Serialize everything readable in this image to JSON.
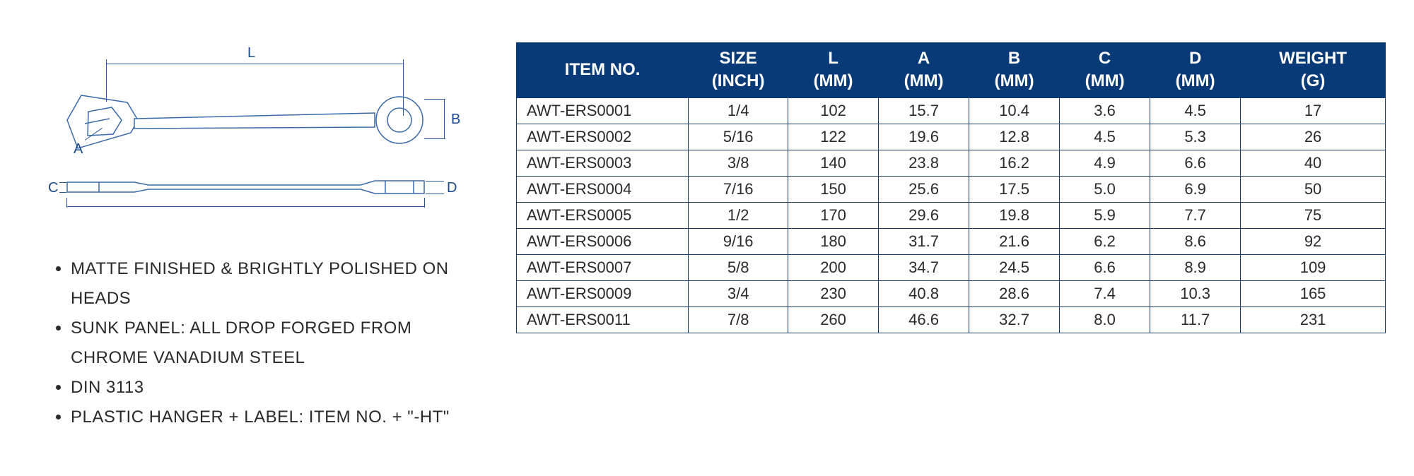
{
  "diagram": {
    "labels": {
      "L": "L",
      "A": "A",
      "B": "B",
      "C": "C",
      "D": "D"
    },
    "line_color": "#2a5a9a",
    "label_color": "#1a4a8a"
  },
  "features": [
    "MATTE FINISHED & BRIGHTLY POLISHED ON HEADS",
    "SUNK PANEL: ALL DROP FORGED FROM CHROME VANADIUM STEEL",
    "DIN 3113",
    "PLASTIC HANGER + LABEL: ITEM NO. + \"-HT\""
  ],
  "table": {
    "header_bg": "#083a78",
    "header_fg": "#ffffff",
    "border_color": "#1a3a6a",
    "columns": [
      "ITEM NO.",
      "SIZE\n(INCH)",
      "L\n(MM)",
      "A\n(MM)",
      "B\n(MM)",
      "C\n(MM)",
      "D\n(MM)",
      "WEIGHT\n(G)"
    ],
    "rows": [
      [
        "AWT-ERS0001",
        "1/4",
        "102",
        "15.7",
        "10.4",
        "3.6",
        "4.5",
        "17"
      ],
      [
        "AWT-ERS0002",
        "5/16",
        "122",
        "19.6",
        "12.8",
        "4.5",
        "5.3",
        "26"
      ],
      [
        "AWT-ERS0003",
        "3/8",
        "140",
        "23.8",
        "16.2",
        "4.9",
        "6.6",
        "40"
      ],
      [
        "AWT-ERS0004",
        "7/16",
        "150",
        "25.6",
        "17.5",
        "5.0",
        "6.9",
        "50"
      ],
      [
        "AWT-ERS0005",
        "1/2",
        "170",
        "29.6",
        "19.8",
        "5.9",
        "7.7",
        "75"
      ],
      [
        "AWT-ERS0006",
        "9/16",
        "180",
        "31.7",
        "21.6",
        "6.2",
        "8.6",
        "92"
      ],
      [
        "AWT-ERS0007",
        "5/8",
        "200",
        "34.7",
        "24.5",
        "6.6",
        "8.9",
        "109"
      ],
      [
        "AWT-ERS0009",
        "3/4",
        "230",
        "40.8",
        "28.6",
        "7.4",
        "10.3",
        "165"
      ],
      [
        "AWT-ERS0011",
        "7/8",
        "260",
        "46.6",
        "32.7",
        "8.0",
        "11.7",
        "231"
      ]
    ],
    "col_widths": [
      "190px",
      "110px",
      "100px",
      "100px",
      "100px",
      "100px",
      "100px",
      "160px"
    ]
  }
}
